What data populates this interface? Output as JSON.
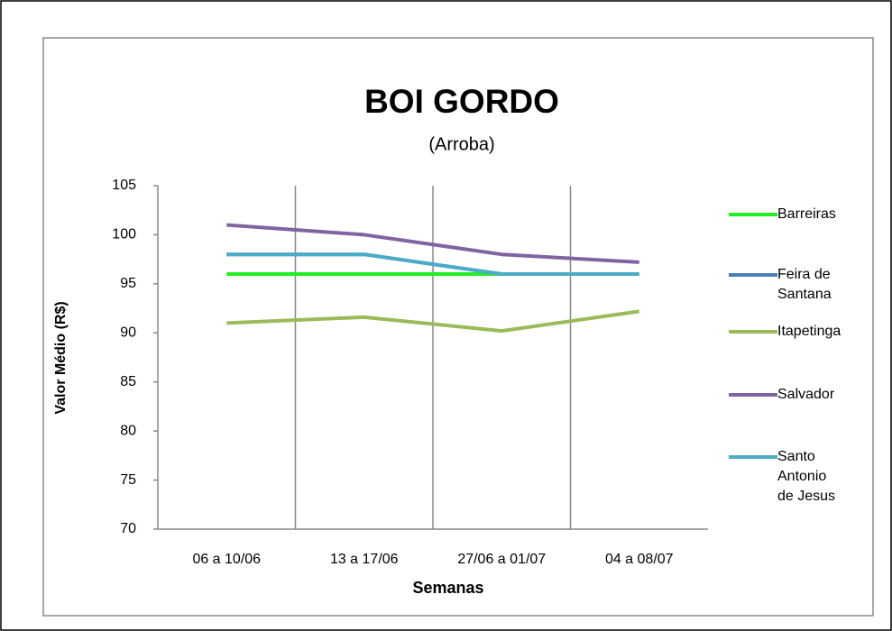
{
  "chart_data": {
    "type": "line",
    "title": "BOI GORDO",
    "subtitle": "(Arroba)",
    "x_label": "Semanas",
    "y_label": "Valor Médio (R$)",
    "categories": [
      "06 a 10/06",
      "13 a 17/06",
      "27/06 a 01/07",
      "04 a 08/07"
    ],
    "series": [
      {
        "name": "Barreiras",
        "color": "#22ee22",
        "values": [
          96,
          96,
          96,
          96
        ]
      },
      {
        "name": "Feira de Santana",
        "color": "#4a7ebb",
        "values": [
          98,
          98,
          96,
          96
        ]
      },
      {
        "name": "Itapetinga",
        "color": "#9bbb59",
        "values": [
          91,
          91.6,
          90.2,
          92.2
        ]
      },
      {
        "name": "Salvador",
        "color": "#8064a2",
        "values": [
          101,
          100,
          98,
          97.2
        ]
      },
      {
        "name": "Santo Antonio de Jesus",
        "color": "#4bacc6",
        "values": [
          98,
          98,
          96,
          96
        ]
      }
    ],
    "ylim": [
      70,
      105
    ],
    "yticks": [
      70,
      75,
      80,
      85,
      90,
      95,
      100,
      105
    ],
    "grid": "vertical",
    "legend": "right"
  }
}
